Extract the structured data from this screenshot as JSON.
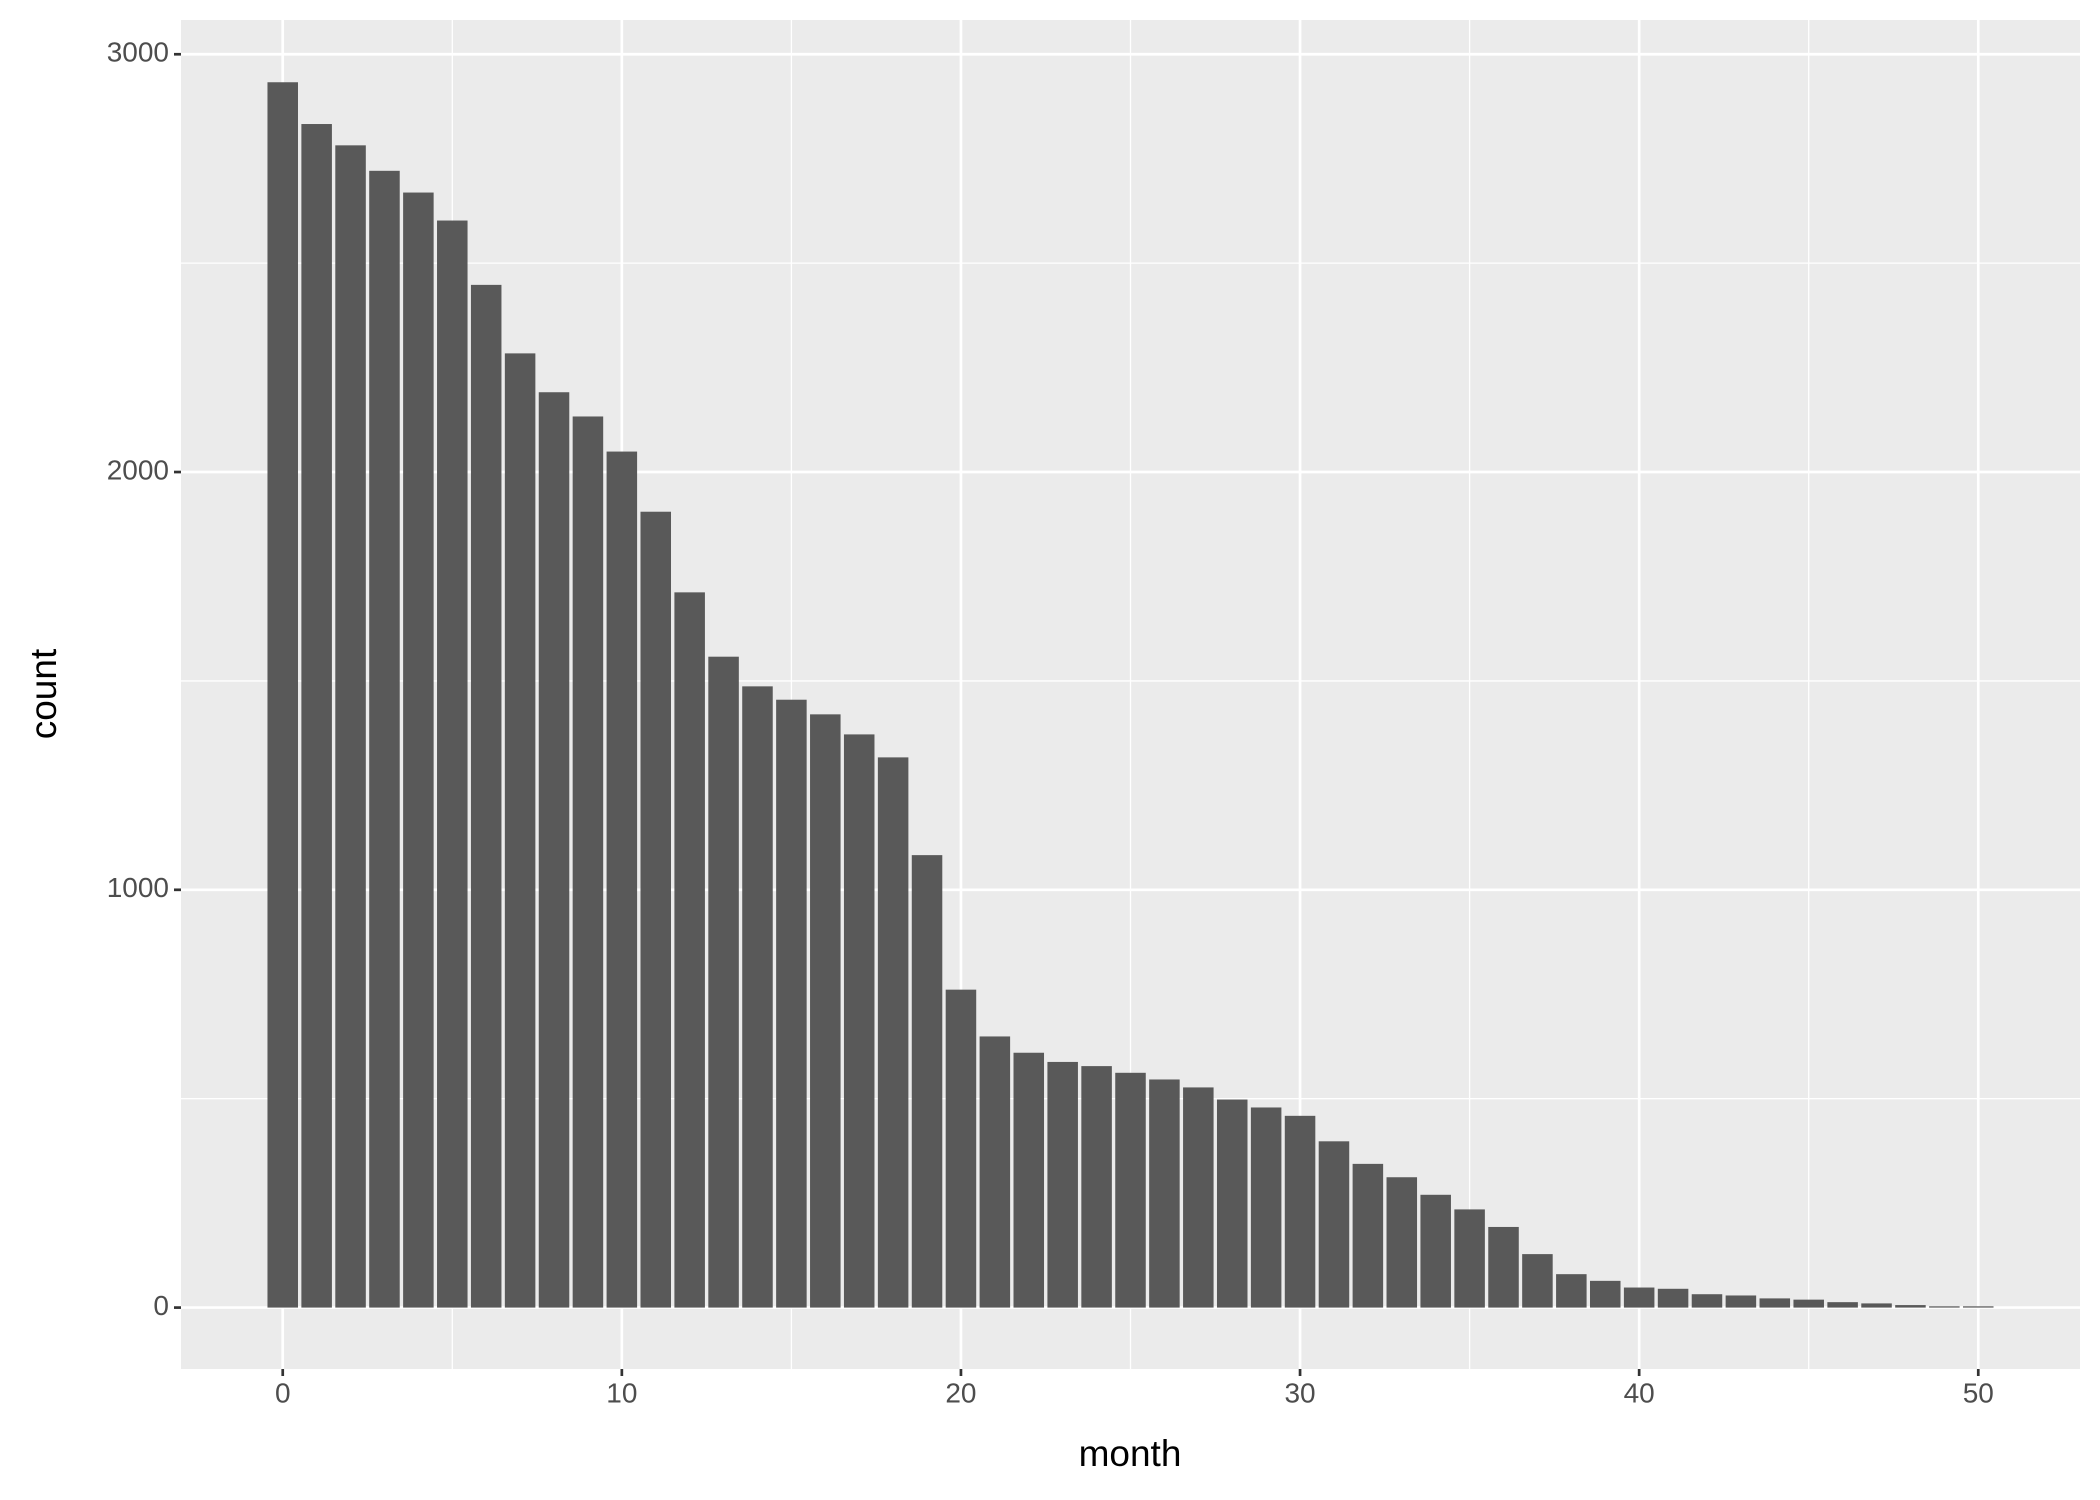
{
  "chart_data": {
    "type": "bar",
    "x_label": "month",
    "y_label": "count",
    "x": [
      0,
      1,
      2,
      3,
      4,
      5,
      6,
      7,
      8,
      9,
      10,
      11,
      12,
      13,
      14,
      15,
      16,
      17,
      18,
      19,
      20,
      21,
      22,
      23,
      24,
      25,
      26,
      27,
      28,
      29,
      30,
      31,
      32,
      33,
      34,
      35,
      36,
      37,
      38,
      39,
      40,
      41,
      42,
      43,
      44,
      45,
      46,
      47,
      48,
      49,
      50
    ],
    "values": [
      2933,
      2833,
      2782,
      2721,
      2669,
      2602,
      2448,
      2284,
      2191,
      2133,
      2049,
      1905,
      1712,
      1558,
      1487,
      1455,
      1420,
      1372,
      1317,
      1083,
      761,
      649,
      610,
      588,
      578,
      562,
      546,
      527,
      498,
      479,
      459,
      398,
      344,
      312,
      270,
      235,
      193,
      128,
      80,
      64,
      48,
      45,
      32,
      29,
      22,
      19,
      13,
      10,
      6,
      3,
      3
    ],
    "color": "#595959",
    "xlim": [
      -3,
      53
    ],
    "ylim": [
      -147,
      3082
    ],
    "xticks": [
      0,
      10,
      20,
      30,
      40,
      50
    ],
    "yticks": [
      0,
      1000,
      2000,
      3000
    ],
    "x_minor_ticks": [
      5,
      15,
      25,
      35,
      45
    ],
    "y_minor_ticks": [
      500,
      1500,
      2500
    ],
    "bar_width": 0.9,
    "grid": true
  }
}
